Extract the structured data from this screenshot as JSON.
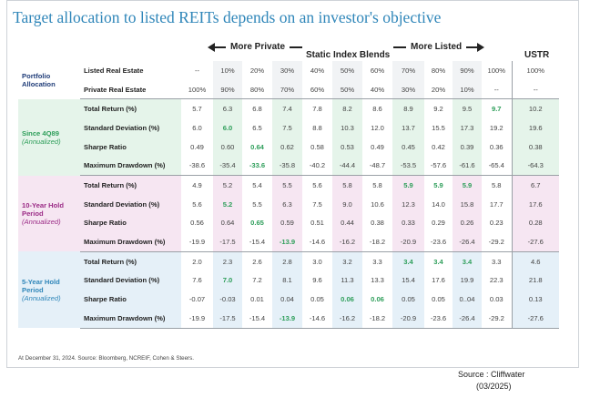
{
  "title": "Target allocation to listed REITs depends on an investor's objective",
  "header": {
    "more_private": "More Private",
    "static": "Static Index Blends",
    "more_listed": "More Listed",
    "ustr": "USTR"
  },
  "colors": {
    "green_bg": "#e5f4ea",
    "pink_bg": "#f6e6f2",
    "blue_bg": "#e5f0f8",
    "highlight": "#2e9e5a"
  },
  "portfolio": {
    "section": "Portfolio Allocation",
    "rows": [
      {
        "label": "Listed Real Estate",
        "values": [
          "--",
          "10%",
          "20%",
          "30%",
          "40%",
          "50%",
          "60%",
          "70%",
          "80%",
          "90%",
          "100%",
          "100%"
        ]
      },
      {
        "label": "Private Real Estate",
        "values": [
          "100%",
          "90%",
          "80%",
          "70%",
          "60%",
          "50%",
          "40%",
          "30%",
          "20%",
          "10%",
          "--",
          "--"
        ]
      }
    ]
  },
  "sections": [
    {
      "key": "s4",
      "title": "Since 4Q89",
      "subtitle": "(Annualized)",
      "rows": [
        {
          "label": "Total Return (%)",
          "values": [
            "5.7",
            "6.3",
            "6.8",
            "7.4",
            "7.8",
            "8.2",
            "8.6",
            "8.9",
            "9.2",
            "9.5",
            "9.7",
            "10.2"
          ]
        },
        {
          "label": "Standard Deviation (%)",
          "values": [
            "6.0",
            "6.0",
            "6.5",
            "7.5",
            "8.8",
            "10.3",
            "12.0",
            "13.7",
            "15.5",
            "17.3",
            "19.2",
            "19.6"
          ]
        },
        {
          "label": "Sharpe Ratio",
          "values": [
            "0.49",
            "0.60",
            "0.64",
            "0.62",
            "0.58",
            "0.53",
            "0.49",
            "0.45",
            "0.42",
            "0.39",
            "0.36",
            "0.38"
          ]
        },
        {
          "label": "Maximum Drawdown (%)",
          "values": [
            "-38.6",
            "-35.4",
            "-33.6",
            "-35.8",
            "-40.2",
            "-44.4",
            "-48.7",
            "-53.5",
            "-57.6",
            "-61.6",
            "-65.4",
            "-64.3"
          ]
        }
      ]
    },
    {
      "key": "s10",
      "title": "10-Year Hold Period",
      "subtitle": "(Annualized)",
      "rows": [
        {
          "label": "Total Return (%)",
          "values": [
            "4.9",
            "5.2",
            "5.4",
            "5.5",
            "5.6",
            "5.8",
            "5.8",
            "5.9",
            "5.9",
            "5.9",
            "5.8",
            "6.7"
          ]
        },
        {
          "label": "Standard Deviation (%)",
          "values": [
            "5.6",
            "5.2",
            "5.5",
            "6.3",
            "7.5",
            "9.0",
            "10.6",
            "12.3",
            "14.0",
            "15.8",
            "17.7",
            "17.6"
          ]
        },
        {
          "label": "Sharpe Ratio",
          "values": [
            "0.56",
            "0.64",
            "0.65",
            "0.59",
            "0.51",
            "0.44",
            "0.38",
            "0.33",
            "0.29",
            "0.26",
            "0.23",
            "0.28"
          ]
        },
        {
          "label": "Maximum Drawdown (%)",
          "values": [
            "-19.9",
            "-17.5",
            "-15.4",
            "-13.9",
            "-14.6",
            "-16.2",
            "-18.2",
            "-20.9",
            "-23.6",
            "-26.4",
            "-29.2",
            "-27.6"
          ]
        }
      ]
    },
    {
      "key": "s5",
      "title": "5-Year Hold Period",
      "subtitle": "(Annualized)",
      "rows": [
        {
          "label": "Total Return (%)",
          "values": [
            "2.0",
            "2.3",
            "2.6",
            "2.8",
            "3.0",
            "3.2",
            "3.3",
            "3.4",
            "3.4",
            "3.4",
            "3.3",
            "4.6"
          ]
        },
        {
          "label": "Standard Deviation (%)",
          "values": [
            "7.6",
            "7.0",
            "7.2",
            "8.1",
            "9.6",
            "11.3",
            "13.3",
            "15.4",
            "17.6",
            "19.9",
            "22.3",
            "21.8"
          ]
        },
        {
          "label": "Sharpe Ratio",
          "values": [
            "-0.07",
            "-0.03",
            "0.01",
            "0.04",
            "0.05",
            "0.06",
            "0.06",
            "0.05",
            "0.05",
            "0..04",
            "0.03",
            "0.13"
          ]
        },
        {
          "label": "Maximum Drawdown (%)",
          "values": [
            "-19.9",
            "-17.5",
            "-15.4",
            "-13.9",
            "-14.6",
            "-16.2",
            "-18.2",
            "-20.9",
            "-23.6",
            "-26.4",
            "-29.2",
            "-27.6"
          ]
        }
      ]
    }
  ],
  "footnote": "At December 31, 2024. Source: Bloomberg, NCREIF, Cohen & Steers.",
  "source": "Source : Cliffwater",
  "date": "(03/2025)"
}
